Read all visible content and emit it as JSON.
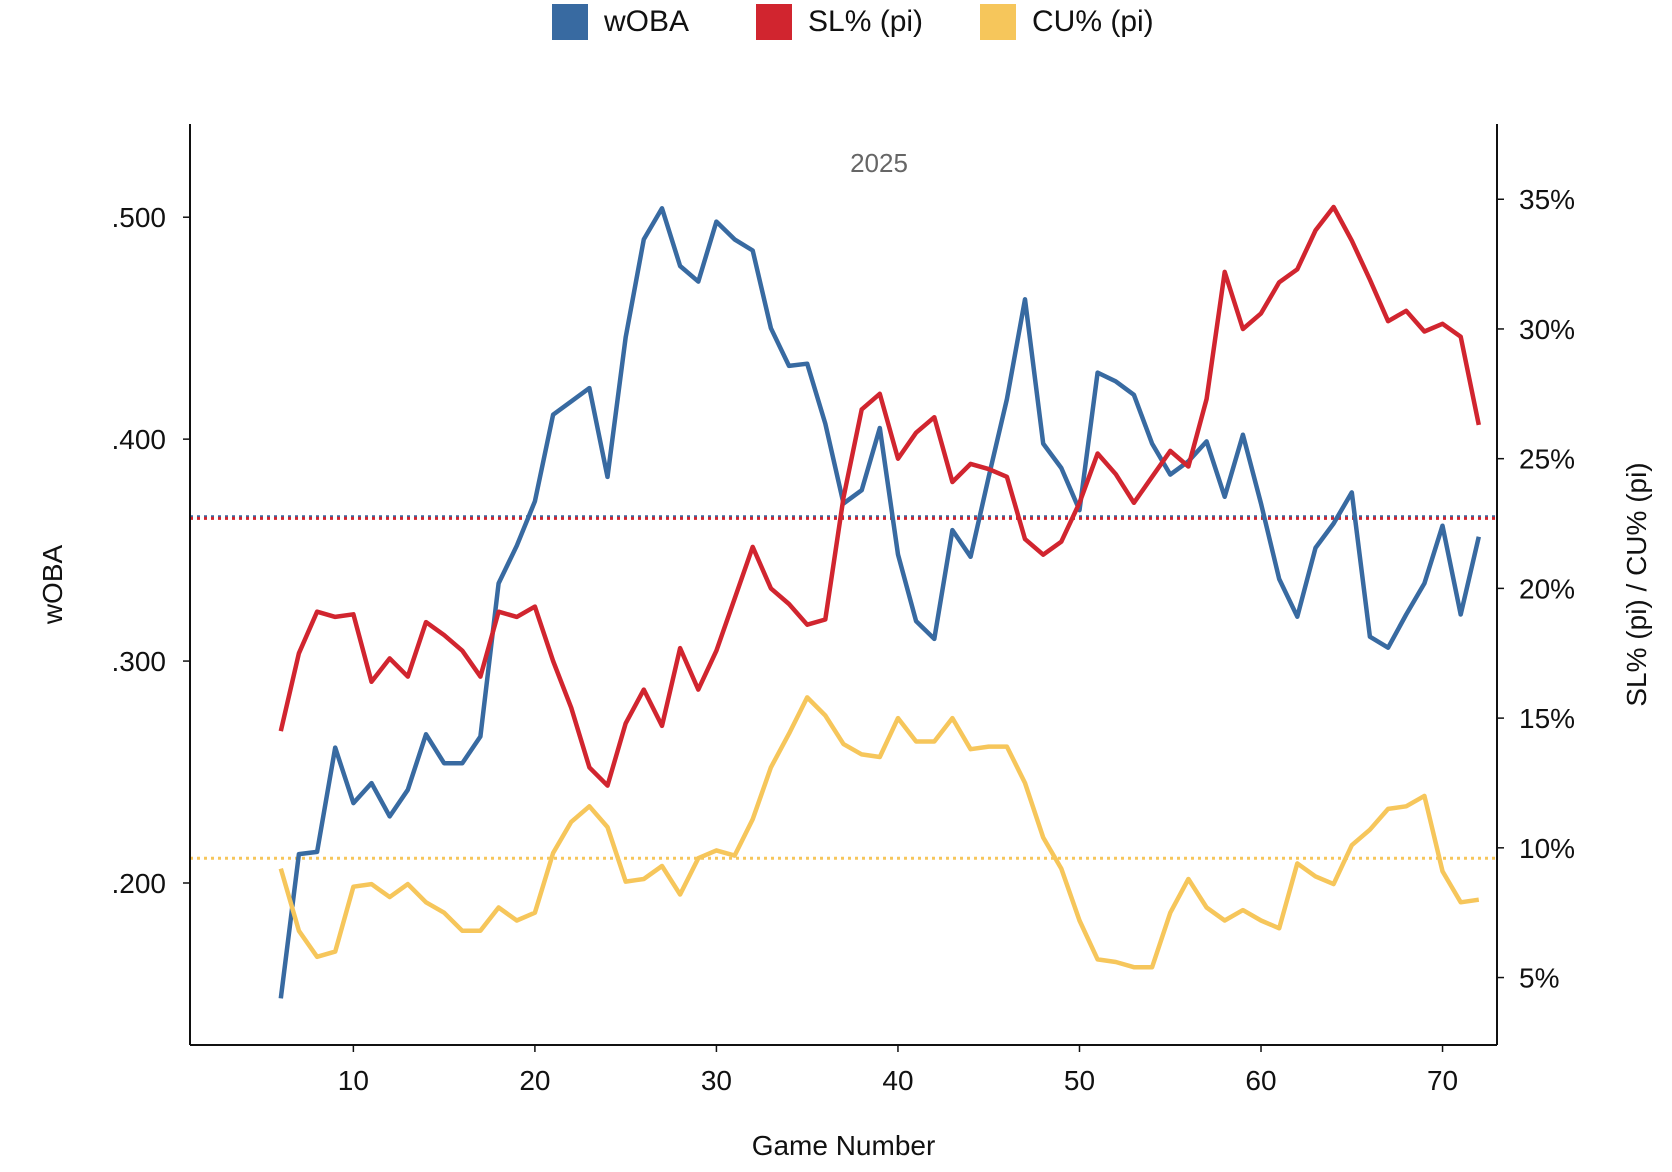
{
  "chart_data": {
    "type": "line",
    "annotation": "2025",
    "xlabel": "Game Number",
    "ylabel": "wOBA",
    "y2label": "SL% (pi) / CU% (pi)",
    "xlim": [
      1,
      73
    ],
    "xticks": [
      10,
      20,
      30,
      40,
      50,
      60,
      70
    ],
    "ylim": [
      0.127,
      0.542
    ],
    "yticks": [
      0.2,
      0.3,
      0.4,
      0.5
    ],
    "ytick_labels": [
      ".200",
      ".300",
      ".400",
      ".500"
    ],
    "y2lim": [
      2.4,
      37.9
    ],
    "y2ticks": [
      5,
      10,
      15,
      20,
      25,
      30,
      35
    ],
    "y2tick_labels": [
      "5%",
      "10%",
      "15%",
      "20%",
      "25%",
      "30%",
      "35%"
    ],
    "x": [
      6,
      7,
      8,
      9,
      10,
      11,
      12,
      13,
      14,
      15,
      16,
      17,
      18,
      19,
      20,
      21,
      22,
      23,
      24,
      25,
      26,
      27,
      28,
      29,
      30,
      31,
      32,
      33,
      34,
      35,
      36,
      37,
      38,
      39,
      40,
      41,
      42,
      43,
      44,
      45,
      46,
      47,
      48,
      49,
      50,
      51,
      52,
      53,
      54,
      55,
      56,
      57,
      58,
      59,
      60,
      61,
      62,
      63,
      64,
      65,
      66,
      67,
      68,
      69,
      70,
      71,
      72
    ],
    "series": [
      {
        "name": "wOBA",
        "axis": "left",
        "color": "#386AA1",
        "values": [
          0.148,
          0.213,
          0.214,
          0.261,
          0.236,
          0.245,
          0.23,
          0.242,
          0.267,
          0.254,
          0.254,
          0.266,
          0.335,
          0.352,
          0.372,
          0.411,
          0.417,
          0.423,
          0.383,
          0.446,
          0.49,
          0.504,
          0.478,
          0.471,
          0.498,
          0.49,
          0.485,
          0.45,
          0.433,
          0.434,
          0.407,
          0.371,
          0.377,
          0.405,
          0.348,
          0.318,
          0.31,
          0.359,
          0.347,
          0.383,
          0.418,
          0.463,
          0.398,
          0.387,
          0.368,
          0.43,
          0.426,
          0.42,
          0.398,
          0.384,
          0.39,
          0.399,
          0.374,
          0.402,
          0.371,
          0.337,
          0.32,
          0.351,
          0.362,
          0.376,
          0.311,
          0.306,
          0.321,
          0.335,
          0.361,
          0.321,
          0.356
        ],
        "reference": 0.365
      },
      {
        "name": "SL% (pi)",
        "axis": "right",
        "color": "#D1252F",
        "values": [
          14.5,
          17.5,
          19.1,
          18.9,
          19.0,
          16.4,
          17.3,
          16.6,
          18.7,
          18.2,
          17.6,
          16.6,
          19.1,
          18.9,
          19.3,
          17.2,
          15.4,
          13.1,
          12.4,
          14.8,
          16.1,
          14.7,
          17.7,
          16.1,
          17.6,
          19.6,
          21.6,
          20.0,
          19.4,
          18.6,
          18.8,
          23.5,
          26.9,
          27.5,
          25.0,
          26.0,
          26.6,
          24.1,
          24.8,
          24.6,
          24.3,
          21.9,
          21.3,
          21.8,
          23.3,
          25.2,
          24.4,
          23.3,
          24.3,
          25.3,
          24.7,
          27.3,
          32.2,
          30.0,
          30.6,
          31.8,
          32.3,
          33.8,
          34.7,
          33.4,
          31.9,
          30.3,
          30.7,
          29.9,
          30.2,
          29.7,
          26.3
        ],
        "reference": 22.7
      },
      {
        "name": "CU% (pi)",
        "axis": "right",
        "color": "#F6C65B",
        "values": [
          9.2,
          6.8,
          5.8,
          6.0,
          8.5,
          8.6,
          8.1,
          8.6,
          7.9,
          7.5,
          6.8,
          6.8,
          7.7,
          7.2,
          7.5,
          9.8,
          11.0,
          11.6,
          10.8,
          8.7,
          8.8,
          9.3,
          8.2,
          9.6,
          9.9,
          9.7,
          11.1,
          13.1,
          14.4,
          15.8,
          15.1,
          14.0,
          13.6,
          13.5,
          15.0,
          14.1,
          14.1,
          15.0,
          13.8,
          13.9,
          13.9,
          12.5,
          10.4,
          9.2,
          7.2,
          5.7,
          5.6,
          5.4,
          5.4,
          7.5,
          8.8,
          7.7,
          7.2,
          7.6,
          7.2,
          6.9,
          9.4,
          8.9,
          8.6,
          10.1,
          10.7,
          11.5,
          11.6,
          12.0,
          9.1,
          7.9,
          8.0
        ],
        "reference": 9.6
      }
    ],
    "legend": {
      "placement": "top-center",
      "entries": [
        "wOBA",
        "SL% (pi)",
        "CU% (pi)"
      ]
    }
  }
}
